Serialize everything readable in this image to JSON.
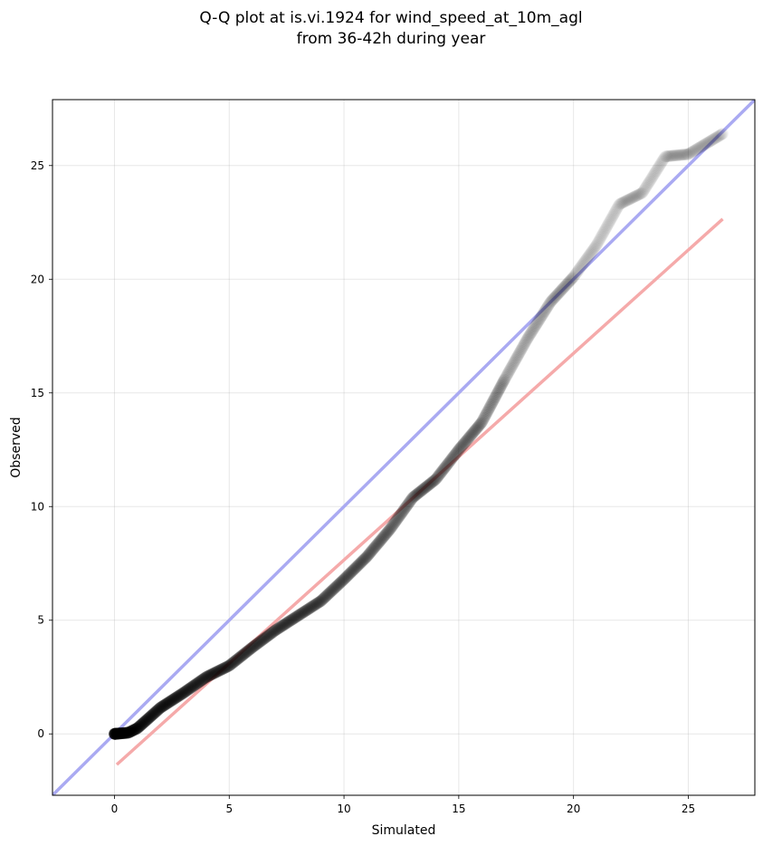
{
  "chart_data": {
    "type": "scatter",
    "title_line1": "Q-Q plot at is.vi.1924 for wind_speed_at_10m_agl",
    "title_line2": "from 36-42h during year",
    "xlabel": "Simulated",
    "ylabel": "Observed",
    "xlim": [
      -2.7,
      27.9
    ],
    "ylim": [
      -2.7,
      27.9
    ],
    "xticks": [
      0,
      5,
      10,
      15,
      20,
      25
    ],
    "yticks": [
      0,
      5,
      10,
      15,
      20,
      25
    ],
    "grid": true,
    "reference_lines": [
      {
        "name": "1:1 line",
        "color": "#aaaaf2",
        "points": [
          [
            -2.7,
            -2.7
          ],
          [
            27.9,
            27.9
          ]
        ]
      },
      {
        "name": "linear fit",
        "color": "#f5aaaa",
        "points": [
          [
            0.1,
            -1.35
          ],
          [
            26.5,
            22.65
          ]
        ]
      }
    ],
    "quantile_curve_knots": [
      [
        0.0,
        0.0
      ],
      [
        0.6,
        0.05
      ],
      [
        1.0,
        0.25
      ],
      [
        1.5,
        0.7
      ],
      [
        2.0,
        1.15
      ],
      [
        3.0,
        1.8
      ],
      [
        4.0,
        2.5
      ],
      [
        5.0,
        3.0
      ],
      [
        6.0,
        3.8
      ],
      [
        7.0,
        4.55
      ],
      [
        8.0,
        5.2
      ],
      [
        9.0,
        5.85
      ],
      [
        10.0,
        6.8
      ],
      [
        11.0,
        7.8
      ],
      [
        12.0,
        9.0
      ],
      [
        13.0,
        10.4
      ],
      [
        14.0,
        11.2
      ],
      [
        15.0,
        12.5
      ],
      [
        16.0,
        13.7
      ],
      [
        17.0,
        15.6
      ],
      [
        18.0,
        17.4
      ],
      [
        19.0,
        19.0
      ],
      [
        20.0,
        20.1
      ],
      [
        21.0,
        21.5
      ],
      [
        22.0,
        23.3
      ],
      [
        23.0,
        23.8
      ],
      [
        24.0,
        25.4
      ],
      [
        25.0,
        25.5
      ],
      [
        26.5,
        26.4
      ]
    ],
    "points_color": "#000000",
    "n_points": 1100
  }
}
